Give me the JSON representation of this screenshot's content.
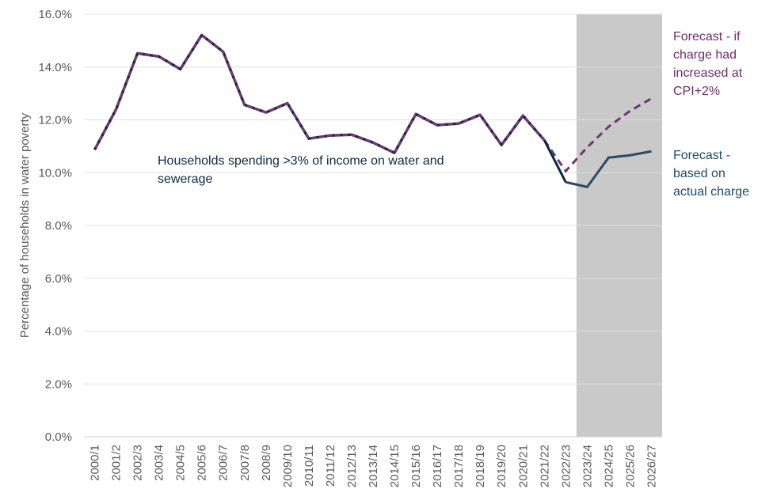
{
  "chart_data": {
    "type": "line",
    "title": "",
    "xlabel": "",
    "ylabel": "Percentage of households in water poverty",
    "ylim": [
      0,
      16
    ],
    "yticks": [
      "0.0%",
      "2.0%",
      "4.0%",
      "6.0%",
      "8.0%",
      "10.0%",
      "12.0%",
      "14.0%",
      "16.0%"
    ],
    "ytick_values": [
      0,
      2,
      4,
      6,
      8,
      10,
      12,
      14,
      16
    ],
    "grid": true,
    "categories": [
      "2000/1",
      "2001/2",
      "2002/3",
      "2003/4",
      "2004/5",
      "2005/6",
      "2006/7",
      "2007/8",
      "2008/9",
      "2009/10",
      "2010/11",
      "2011/12",
      "2012/13",
      "2013/14",
      "2014/15",
      "2015/16",
      "2016/17",
      "2017/18",
      "2018/19",
      "2019/20",
      "2020/21",
      "2021/22",
      "2022/23",
      "2023/24",
      "2024/25",
      "2025/26",
      "2026/27"
    ],
    "forecast_shading": {
      "from": "2023/24",
      "to": "2026/27",
      "color": "#c9c9c9"
    },
    "series": [
      {
        "name": "Forecast - if charge had increased at CPI+2%",
        "color": "#6e3a6e",
        "style": "dashed",
        "values": [
          10.87,
          12.4,
          14.52,
          14.4,
          13.92,
          15.21,
          14.58,
          12.57,
          12.28,
          12.63,
          11.29,
          11.41,
          11.44,
          11.14,
          10.75,
          12.22,
          11.8,
          11.86,
          12.19,
          11.05,
          12.16,
          11.23,
          10.06,
          10.96,
          11.74,
          12.34,
          12.81
        ]
      },
      {
        "name": "Forecast - based on actual charge",
        "color": "#0e2841",
        "forecast_color": "#2e4a62",
        "style": "solid",
        "values": [
          10.87,
          12.4,
          14.52,
          14.4,
          13.92,
          15.21,
          14.58,
          12.57,
          12.28,
          12.63,
          11.29,
          11.41,
          11.44,
          11.14,
          10.75,
          12.22,
          11.8,
          11.86,
          12.19,
          11.05,
          12.16,
          11.23,
          9.64,
          9.46,
          10.57,
          10.66,
          10.81
        ]
      }
    ],
    "annotations": {
      "main": "Households spending >3% of income on water and sewerage",
      "cpi": "Forecast - if charge had increased at CPI+2%",
      "actual": "Forecast - based on actual charge"
    }
  }
}
